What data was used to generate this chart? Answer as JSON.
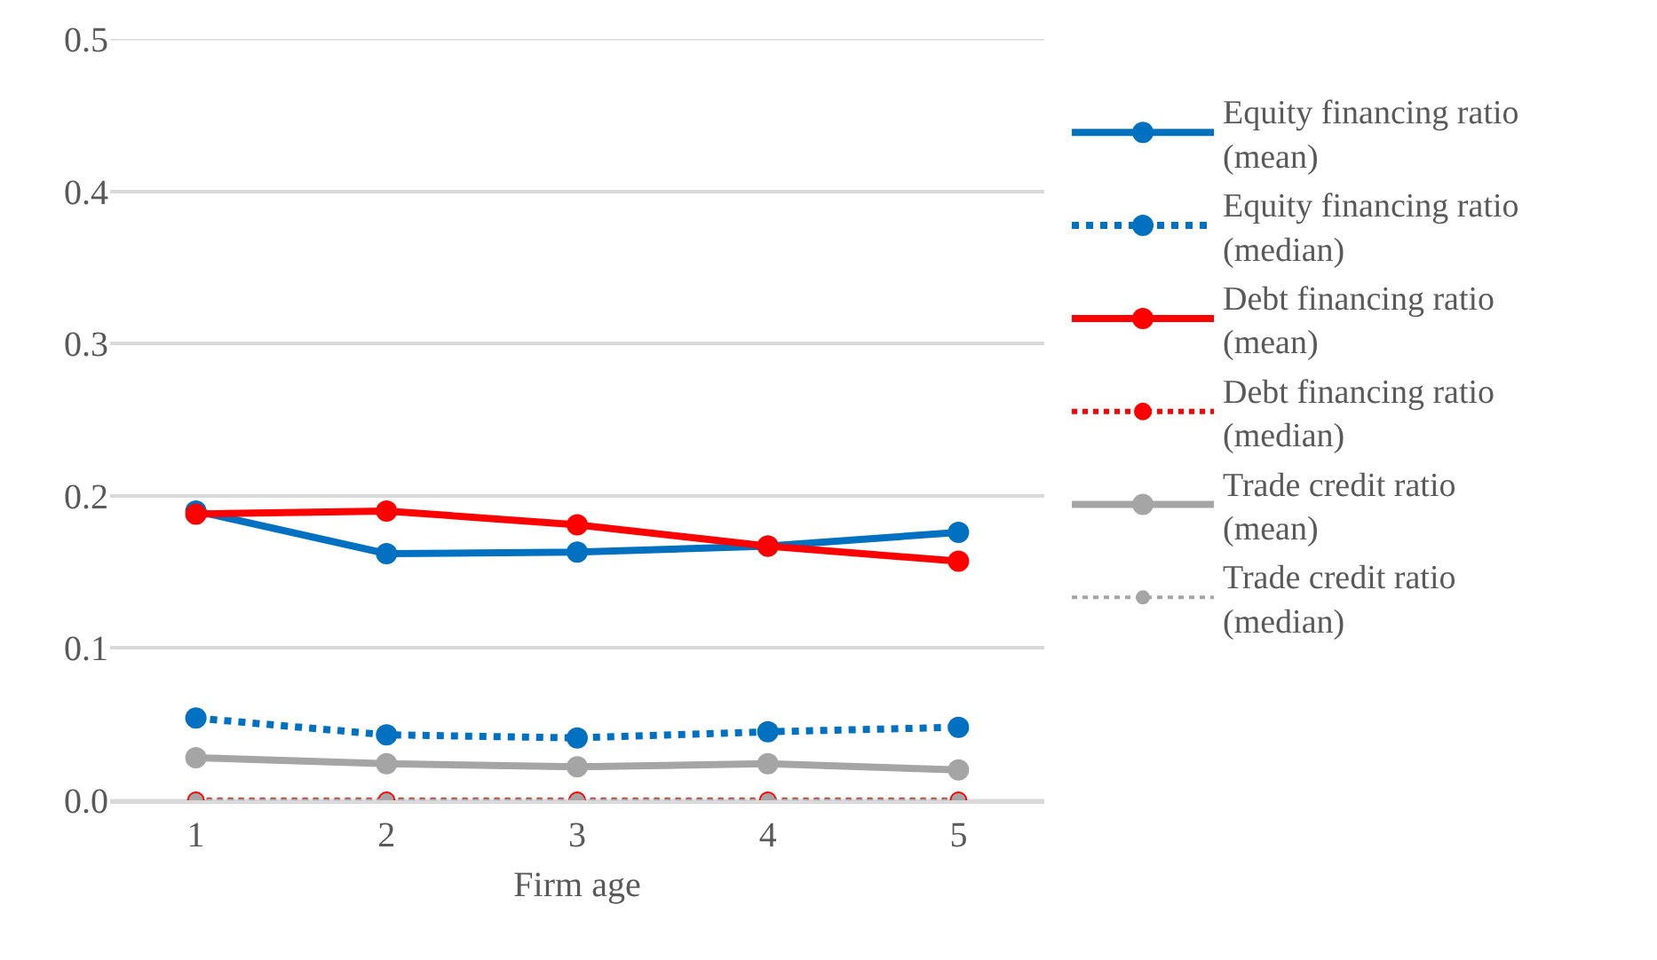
{
  "chart_data": {
    "type": "line",
    "xlabel": "Firm age",
    "categories": [
      "1",
      "2",
      "3",
      "4",
      "5"
    ],
    "series": [
      {
        "name": "Equity financing ratio (mean)",
        "color": "#0070c0",
        "line_style": "solid",
        "values": [
          0.19,
          0.162,
          0.163,
          0.167,
          0.176
        ]
      },
      {
        "name": "Equity financing ratio (median)",
        "color": "#0070c0",
        "line_style": "dotted",
        "values": [
          0.054,
          0.043,
          0.041,
          0.045,
          0.048
        ]
      },
      {
        "name": "Debt financing ratio (mean)",
        "color": "#ff0000",
        "line_style": "solid",
        "values": [
          0.188,
          0.19,
          0.181,
          0.167,
          0.157
        ]
      },
      {
        "name": "Debt financing ratio (median)",
        "color": "#ff0000",
        "line_style": "dotted",
        "values": [
          0,
          0,
          0,
          0,
          0
        ]
      },
      {
        "name": "Trade credit ratio (mean)",
        "color": "#a5a5a5",
        "line_style": "solid",
        "values": [
          0.028,
          0.024,
          0.022,
          0.024,
          0.02
        ]
      },
      {
        "name": "Trade credit ratio (median)",
        "color": "#a5a5a5",
        "line_style": "dotted",
        "values": [
          0,
          0,
          0,
          0,
          0
        ]
      }
    ],
    "ylim": [
      0,
      0.5
    ],
    "yticks": [
      {
        "value": 0,
        "label": "0.0"
      },
      {
        "value": 0.1,
        "label": "0.1"
      },
      {
        "value": 0.2,
        "label": "0.2"
      },
      {
        "value": 0.3,
        "label": "0.3"
      },
      {
        "value": 0.4,
        "label": "0.4"
      },
      {
        "value": 0.5,
        "label": "0.5"
      }
    ],
    "grid": "y",
    "legend": "right",
    "marker": "circle"
  }
}
